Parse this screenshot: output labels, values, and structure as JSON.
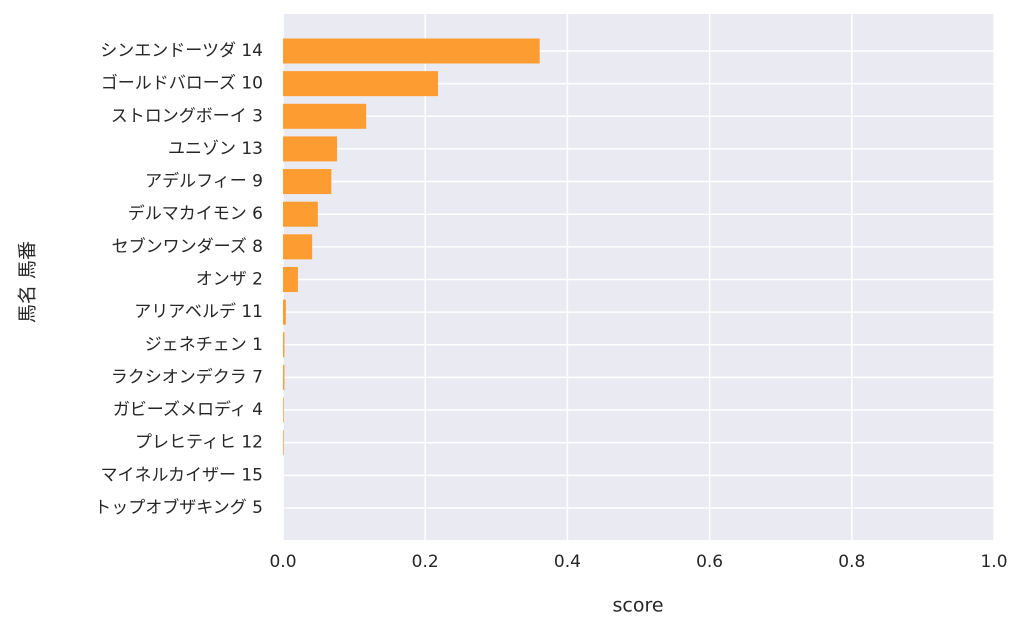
{
  "chart_data": {
    "type": "barh",
    "categories": [
      "シンエンドーツダ 14",
      "ゴールドバローズ 10",
      "ストロングボーイ 3",
      "ユニゾン 13",
      "アデルフィー 9",
      "デルマカイモン 6",
      "セブンワンダーズ 8",
      "オンザ 2",
      "アリアベルデ 11",
      "ジェネチェン 1",
      "ラクシオンデクラ 7",
      "ガビーズメロディ 4",
      "プレヒティヒ 12",
      "マイネルカイザー 15",
      "トップオブザキング 5"
    ],
    "values": [
      0.361,
      0.218,
      0.117,
      0.076,
      0.068,
      0.049,
      0.041,
      0.021,
      0.004,
      0.002,
      0.002,
      0.001,
      0.001,
      0,
      0
    ],
    "color": "#fd9c30",
    "xlabel": "score",
    "ylabel": "馬名 馬番",
    "xlim": [
      0,
      1
    ],
    "xticks": [
      {
        "value": 0,
        "label": "0.0"
      },
      0.2,
      0.4,
      0.6,
      0.8,
      {
        "value": 1,
        "label": "1.0"
      }
    ],
    "grid": true
  }
}
